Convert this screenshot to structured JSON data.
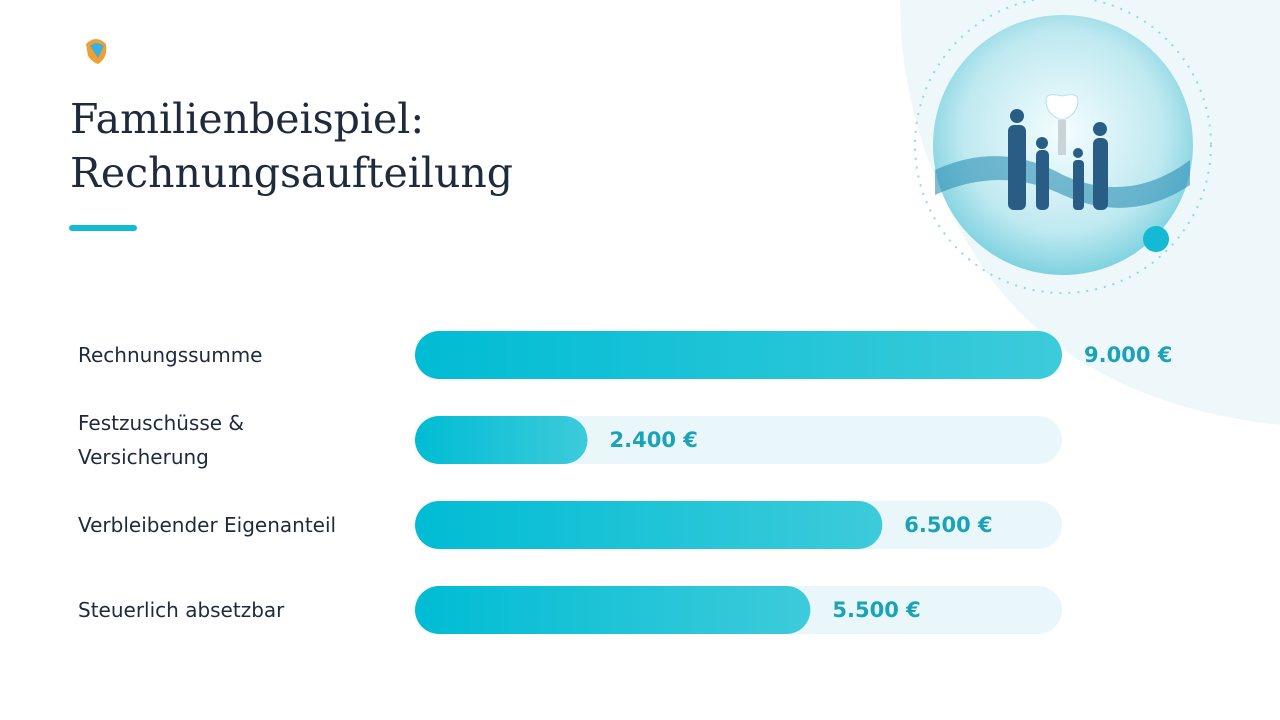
{
  "chart_data": {
    "type": "bar",
    "orientation": "horizontal",
    "title": "Familienbeispiel: Rechnungsaufteilung",
    "categories": [
      "Rechnungssumme",
      "Festzuschüsse & Versicherung",
      "Verbleibender Eigenanteil",
      "Steuerlich absetzbar"
    ],
    "values": [
      9000,
      2400,
      6500,
      5500
    ],
    "value_labels": [
      "9.000 €",
      "2.400 €",
      "6.500 €",
      "5.500 €"
    ],
    "color": "#00bcd4",
    "xlim": [
      0,
      9000
    ]
  }
}
